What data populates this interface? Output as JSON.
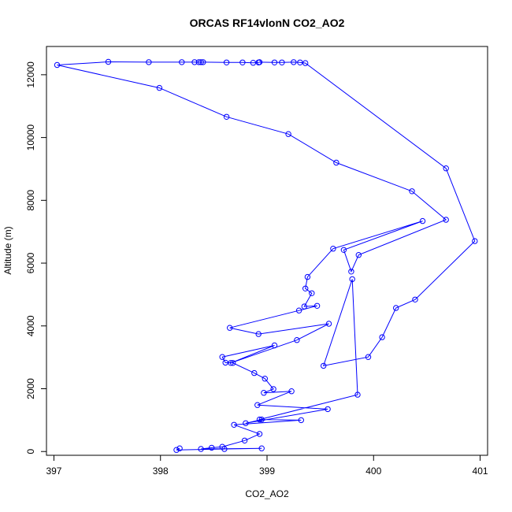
{
  "chart_data": {
    "type": "scatter",
    "title": "ORCAS RF14vlonN CO2_AO2",
    "xlabel": "CO2_AO2",
    "ylabel": "Altitude (m)",
    "xlim": [
      396.93,
      401.07
    ],
    "ylim": [
      -120,
      12900
    ],
    "xticks": [
      397,
      398,
      399,
      400,
      401
    ],
    "yticks": [
      0,
      2000,
      4000,
      6000,
      8000,
      10000,
      12000
    ],
    "grid": false,
    "legend": "none",
    "color": "#0000ff",
    "series": [
      {
        "points": [
          [
            398.18,
            100
          ],
          [
            398.15,
            50
          ],
          [
            398.6,
            80
          ],
          [
            398.95,
            100
          ],
          [
            398.38,
            80
          ],
          [
            398.48,
            120
          ],
          [
            398.58,
            150
          ],
          [
            398.79,
            350
          ],
          [
            398.93,
            560
          ],
          [
            398.69,
            850
          ],
          [
            399.32,
            1000
          ],
          [
            398.95,
            1020
          ],
          [
            398.8,
            900
          ],
          [
            399.57,
            1350
          ],
          [
            398.91,
            1480
          ],
          [
            399.23,
            1920
          ],
          [
            398.97,
            1870
          ],
          [
            399.06,
            1990
          ],
          [
            398.98,
            2320
          ],
          [
            398.88,
            2500
          ],
          [
            398.68,
            2820
          ],
          [
            398.61,
            2830
          ],
          [
            398.58,
            3010
          ],
          [
            399.07,
            3380
          ],
          [
            398.66,
            2820
          ],
          [
            399.28,
            3550
          ],
          [
            399.58,
            4070
          ],
          [
            398.92,
            3740
          ],
          [
            398.65,
            3940
          ],
          [
            399.3,
            4490
          ],
          [
            399.47,
            4640
          ],
          [
            399.35,
            4620
          ],
          [
            399.42,
            5040
          ],
          [
            399.36,
            5190
          ],
          [
            399.38,
            5560
          ],
          [
            399.62,
            6460
          ],
          [
            400.46,
            7340
          ],
          [
            399.72,
            6420
          ],
          [
            399.79,
            5730
          ],
          [
            399.86,
            6260
          ],
          [
            400.68,
            7380
          ],
          [
            400.36,
            8290
          ],
          [
            399.65,
            9200
          ],
          [
            399.2,
            10110
          ],
          [
            398.62,
            10660
          ],
          [
            397.99,
            11580
          ],
          [
            397.03,
            12310
          ],
          [
            397.51,
            12410
          ],
          [
            397.89,
            12400
          ],
          [
            398.2,
            12400
          ],
          [
            398.32,
            12400
          ],
          [
            398.36,
            12400
          ],
          [
            398.38,
            12400
          ],
          [
            398.4,
            12400
          ],
          [
            398.62,
            12390
          ],
          [
            398.77,
            12390
          ],
          [
            398.87,
            12380
          ],
          [
            398.92,
            12390
          ],
          [
            398.93,
            12400
          ],
          [
            399.07,
            12390
          ],
          [
            399.14,
            12390
          ],
          [
            399.25,
            12400
          ],
          [
            399.31,
            12390
          ],
          [
            399.36,
            12370
          ],
          [
            400.68,
            9020
          ],
          [
            400.95,
            6700
          ],
          [
            400.39,
            4840
          ],
          [
            400.21,
            4570
          ],
          [
            400.08,
            3640
          ],
          [
            399.95,
            3010
          ],
          [
            399.53,
            2730
          ],
          [
            399.8,
            5490
          ],
          [
            399.85,
            1810
          ],
          [
            398.93,
            1020
          ]
        ]
      }
    ]
  }
}
